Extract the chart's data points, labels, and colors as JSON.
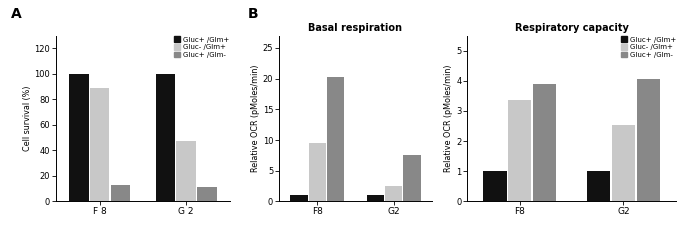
{
  "panel_A": {
    "categories": [
      "F 8",
      "G 2"
    ],
    "series": [
      {
        "name": "Gluc+ /Glm+",
        "color": "#111111",
        "values": [
          100,
          100
        ]
      },
      {
        "name": "Gluc- /Glm+",
        "color": "#c8c8c8",
        "values": [
          89,
          47
        ]
      },
      {
        "name": "Gluc+ /Glm-",
        "color": "#888888",
        "values": [
          13,
          11
        ]
      }
    ],
    "ylabel": "Cell survival (%)",
    "ylim": [
      0,
      130
    ],
    "yticks": [
      0,
      20,
      40,
      60,
      80,
      100,
      120
    ]
  },
  "panel_B": {
    "title": "Basal respiration",
    "categories": [
      "F8",
      "G2"
    ],
    "series": [
      {
        "name": "Gluc+ /Glm+",
        "color": "#111111",
        "values": [
          1,
          1
        ]
      },
      {
        "name": "Gluc- /Glm+",
        "color": "#c8c8c8",
        "values": [
          9.5,
          2.5
        ]
      },
      {
        "name": "Gluc+ /Glm-",
        "color": "#888888",
        "values": [
          20.3,
          7.5
        ]
      }
    ],
    "ylabel": "Relative OCR (pMoles/min)",
    "ylim": [
      0,
      27
    ],
    "yticks": [
      0,
      5,
      10,
      15,
      20,
      25
    ]
  },
  "panel_C": {
    "title": "Respiratory capacity",
    "categories": [
      "F8",
      "G2"
    ],
    "series": [
      {
        "name": "Gluc+ /Glm+",
        "color": "#111111",
        "values": [
          1,
          1
        ]
      },
      {
        "name": "Gluc- /Glm+",
        "color": "#c8c8c8",
        "values": [
          3.35,
          2.55
        ]
      },
      {
        "name": "Gluc+ /Glm-",
        "color": "#888888",
        "values": [
          3.9,
          4.05
        ]
      }
    ],
    "ylabel": "Relative OCR (pMoles/min)",
    "ylim": [
      0,
      5.5
    ],
    "yticks": [
      0,
      1,
      2,
      3,
      4,
      5
    ]
  },
  "legend_labels": [
    "Gluc+ /Glm+",
    "Gluc- /Glm+",
    "Gluc+ /Glm-"
  ],
  "legend_colors": [
    "#111111",
    "#c8c8c8",
    "#888888"
  ]
}
